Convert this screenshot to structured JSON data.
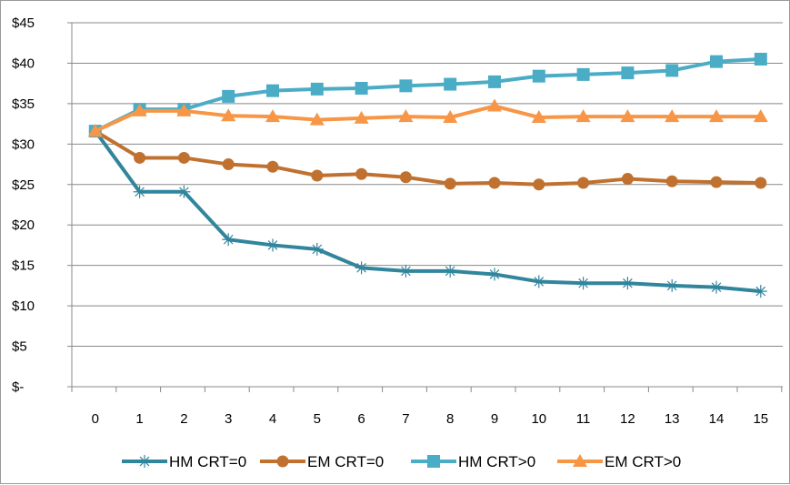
{
  "chart_data": {
    "type": "line",
    "x": [
      0,
      1,
      2,
      3,
      4,
      5,
      6,
      7,
      8,
      9,
      10,
      11,
      12,
      13,
      14,
      15
    ],
    "ylim": [
      0,
      45
    ],
    "yticks": [
      0,
      5,
      10,
      15,
      20,
      25,
      30,
      35,
      40,
      45
    ],
    "ytick_labels": [
      "$-",
      "$5",
      "$10",
      "$15",
      "$20",
      "$25",
      "$30",
      "$35",
      "$40",
      "$45"
    ],
    "grid": "horizontal",
    "legend": "bottom",
    "series": [
      {
        "name": "HM CRT=0",
        "color": "#31859c",
        "marker": "asterisk",
        "values": [
          31.6,
          24.1,
          24.1,
          18.2,
          17.5,
          17.0,
          14.7,
          14.3,
          14.3,
          13.9,
          13.0,
          12.8,
          12.8,
          12.5,
          12.3,
          11.8
        ]
      },
      {
        "name": "EM CRT=0",
        "color": "#c0712f",
        "marker": "circle",
        "values": [
          31.6,
          28.3,
          28.3,
          27.5,
          27.2,
          26.1,
          26.3,
          25.9,
          25.1,
          25.2,
          25.0,
          25.2,
          25.7,
          25.4,
          25.3,
          25.2
        ]
      },
      {
        "name": "HM CRT>0",
        "color": "#4bacc6",
        "marker": "square",
        "values": [
          31.6,
          34.3,
          34.3,
          35.9,
          36.6,
          36.8,
          36.9,
          37.2,
          37.4,
          37.7,
          38.4,
          38.6,
          38.8,
          39.1,
          40.2,
          40.5
        ]
      },
      {
        "name": "EM CRT>0",
        "color": "#f79646",
        "marker": "triangle",
        "values": [
          31.6,
          34.1,
          34.1,
          33.5,
          33.4,
          33.0,
          33.2,
          33.4,
          33.3,
          34.7,
          33.3,
          33.4,
          33.4,
          33.4,
          33.4,
          33.4
        ]
      }
    ]
  }
}
